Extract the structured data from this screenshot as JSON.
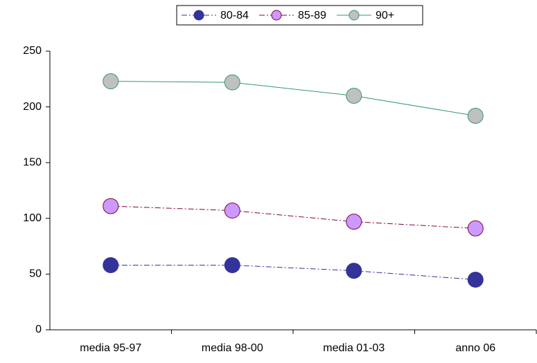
{
  "chart_data": {
    "type": "line",
    "categories": [
      "media 95-97",
      "media 98-00",
      "media 01-03",
      "anno 06"
    ],
    "series": [
      {
        "name": "80-84",
        "color": "#333399",
        "line_color": "#333399",
        "dash": "dashdot",
        "values": [
          58,
          58,
          53,
          45
        ]
      },
      {
        "name": "85-89",
        "color": "#cc99ff",
        "line_color": "#800040",
        "dash": "dashdot",
        "values": [
          111,
          107,
          97,
          91
        ]
      },
      {
        "name": "90+",
        "color": "#c0c0c0",
        "line_color": "#339966",
        "dash": "solid",
        "values": [
          223,
          222,
          210,
          192
        ]
      }
    ],
    "ylim": [
      0,
      250
    ],
    "yticks": [
      0,
      50,
      100,
      150,
      200,
      250
    ],
    "grid": false,
    "legend": "top"
  }
}
